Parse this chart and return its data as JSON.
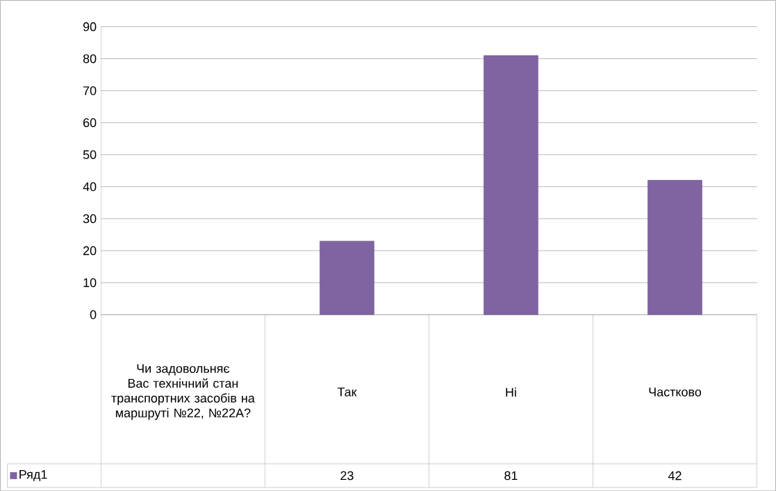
{
  "chart_data": {
    "type": "bar",
    "categories": [
      "Чи задовольняє Вас технічний стан транспортних засобів на маршруті №22, №22А?",
      "Так",
      "Ні",
      "Частково"
    ],
    "series": [
      {
        "name": "Ряд1",
        "color": "#8064a2",
        "values": [
          null,
          23,
          81,
          42
        ],
        "value_labels": [
          null,
          "23",
          "81",
          "42"
        ]
      }
    ],
    "ylim": [
      0,
      90
    ],
    "yticks": [
      0,
      10,
      20,
      30,
      40,
      50,
      60,
      70,
      80,
      90
    ],
    "grid": "y",
    "legend": "bottom"
  }
}
